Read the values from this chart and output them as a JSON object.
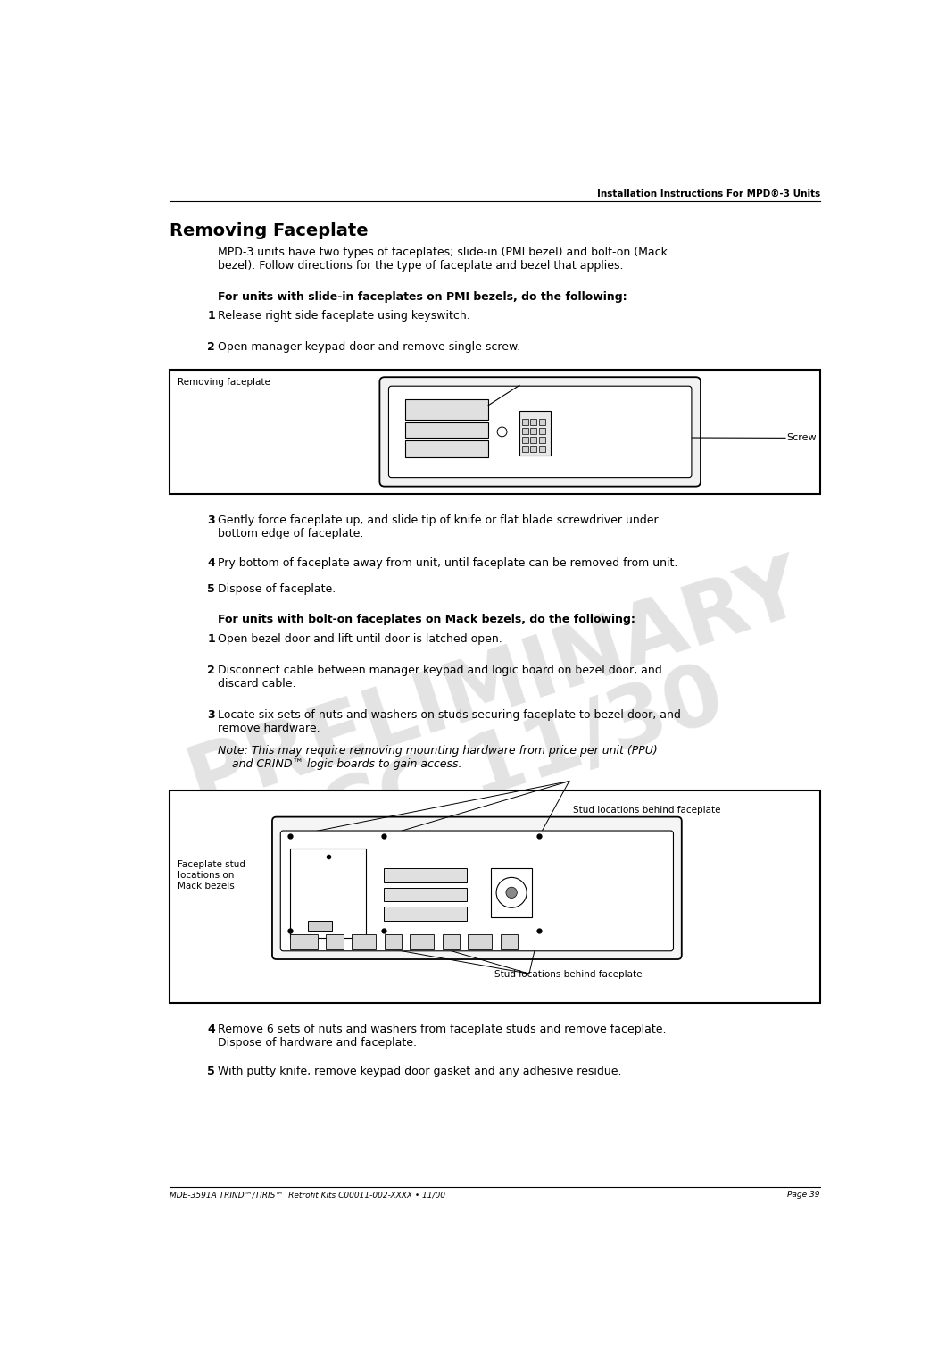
{
  "page_width": 10.51,
  "page_height": 15.26,
  "bg_color": "#ffffff",
  "header_text": "Installation Instructions For MPD®-3 Units",
  "footer_left": "MDE-3591A TRIND™/TIRIS™  Retrofit Kits C00011-002-XXXX • 11/00",
  "footer_right": "Page 39",
  "title": "Removing Faceplate",
  "watermark_line1": "PRELIMINARY",
  "watermark_line2": "FCC 11/30",
  "body_intro": "MPD-3 units have two types of faceplates; slide-in (PMI bezel) and bolt-on (Mack\nbezel). Follow directions for the type of faceplate and bezel that applies.",
  "section1_heading": "For units with slide-in faceplates on PMI bezels, do the following:",
  "s1_step1": "Release right side faceplate using keyswitch.",
  "s1_step2": "Open manager keypad door and remove single screw.",
  "s1_step3": "Gently force faceplate up, and slide tip of knife or flat blade screwdriver under\nbottom edge of faceplate.",
  "s1_step4": "Pry bottom of faceplate away from unit, until faceplate can be removed from unit.",
  "s1_step5": "Dispose of faceplate.",
  "section2_heading": "For units with bolt-on faceplates on Mack bezels, do the following:",
  "s2_step1": "Open bezel door and lift until door is latched open.",
  "s2_step2": "Disconnect cable between manager keypad and logic board on bezel door, and\ndiscard cable.",
  "s2_step3a": "Locate six sets of nuts and washers on studs securing faceplate to bezel door, and\nremove hardware.",
  "s2_step3b": "Note: This may require removing mounting hardware from price per unit (PPU)\n    and CRIND™ logic boards to gain access.",
  "s2_step4": "Remove 6 sets of nuts and washers from faceplate studs and remove faceplate.\nDispose of hardware and faceplate.",
  "s2_step5": "With putty knife, remove keypad door gasket and any adhesive residue.",
  "fig1_label": "Removing faceplate",
  "fig1_screw_label": "Screw",
  "fig2_label_left": "Faceplate stud\nlocations on\nMack bezels",
  "fig2_label_top": "Stud locations behind faceplate",
  "fig2_label_bottom": "Stud locations behind faceplate"
}
